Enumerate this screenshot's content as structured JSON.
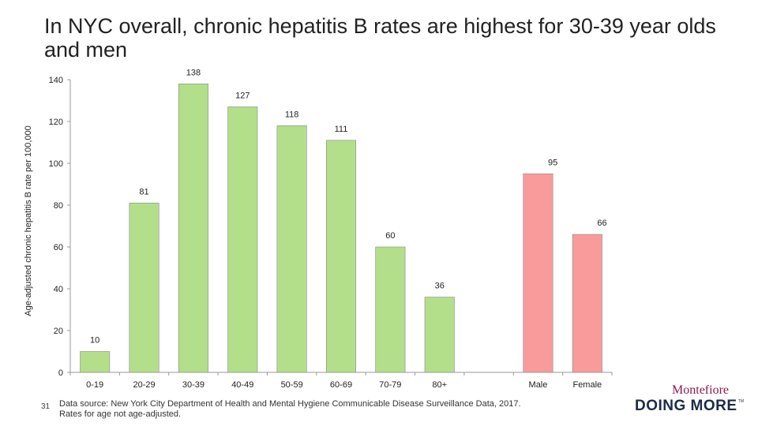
{
  "title": "In NYC overall, chronic hepatitis B rates are highest for 30-39 year olds and men",
  "page_number": "31",
  "source_line1": "Data source: New York City Department of Health and Mental Hygiene Communicable Disease Surveillance Data, 2017.",
  "source_line2": "Rates for age not age-adjusted.",
  "logo": {
    "name": "Montefiore",
    "tagline": "DOING MORE",
    "tm": "TM"
  },
  "colors": {
    "age_bars": "#b3de8a",
    "sex_bars": "#f99b9b",
    "axis": "#999999"
  },
  "chart_data": {
    "type": "bar",
    "title": "In NYC overall, chronic hepatitis B rates are highest for 30-39 year olds and men",
    "ylabel": "Age-adjusted chronic hepatitis B rate per 100,000",
    "xlabel": "",
    "ylim": [
      0,
      140
    ],
    "yticks": [
      0,
      20,
      40,
      60,
      80,
      100,
      120,
      140
    ],
    "grid": false,
    "bars": [
      {
        "category": "0-19",
        "value": 10,
        "group": "age"
      },
      {
        "category": "20-29",
        "value": 81,
        "group": "age"
      },
      {
        "category": "30-39",
        "value": 138,
        "group": "age"
      },
      {
        "category": "40-49",
        "value": 127,
        "group": "age"
      },
      {
        "category": "50-59",
        "value": 118,
        "group": "age"
      },
      {
        "category": "60-69",
        "value": 111,
        "group": "age"
      },
      {
        "category": "70-79",
        "value": 60,
        "group": "age"
      },
      {
        "category": "80+",
        "value": 36,
        "group": "age"
      },
      {
        "category": "",
        "value": null,
        "group": "gap"
      },
      {
        "category": "Male",
        "value": 95,
        "group": "sex"
      },
      {
        "category": "Female",
        "value": 66,
        "group": "sex"
      }
    ]
  }
}
